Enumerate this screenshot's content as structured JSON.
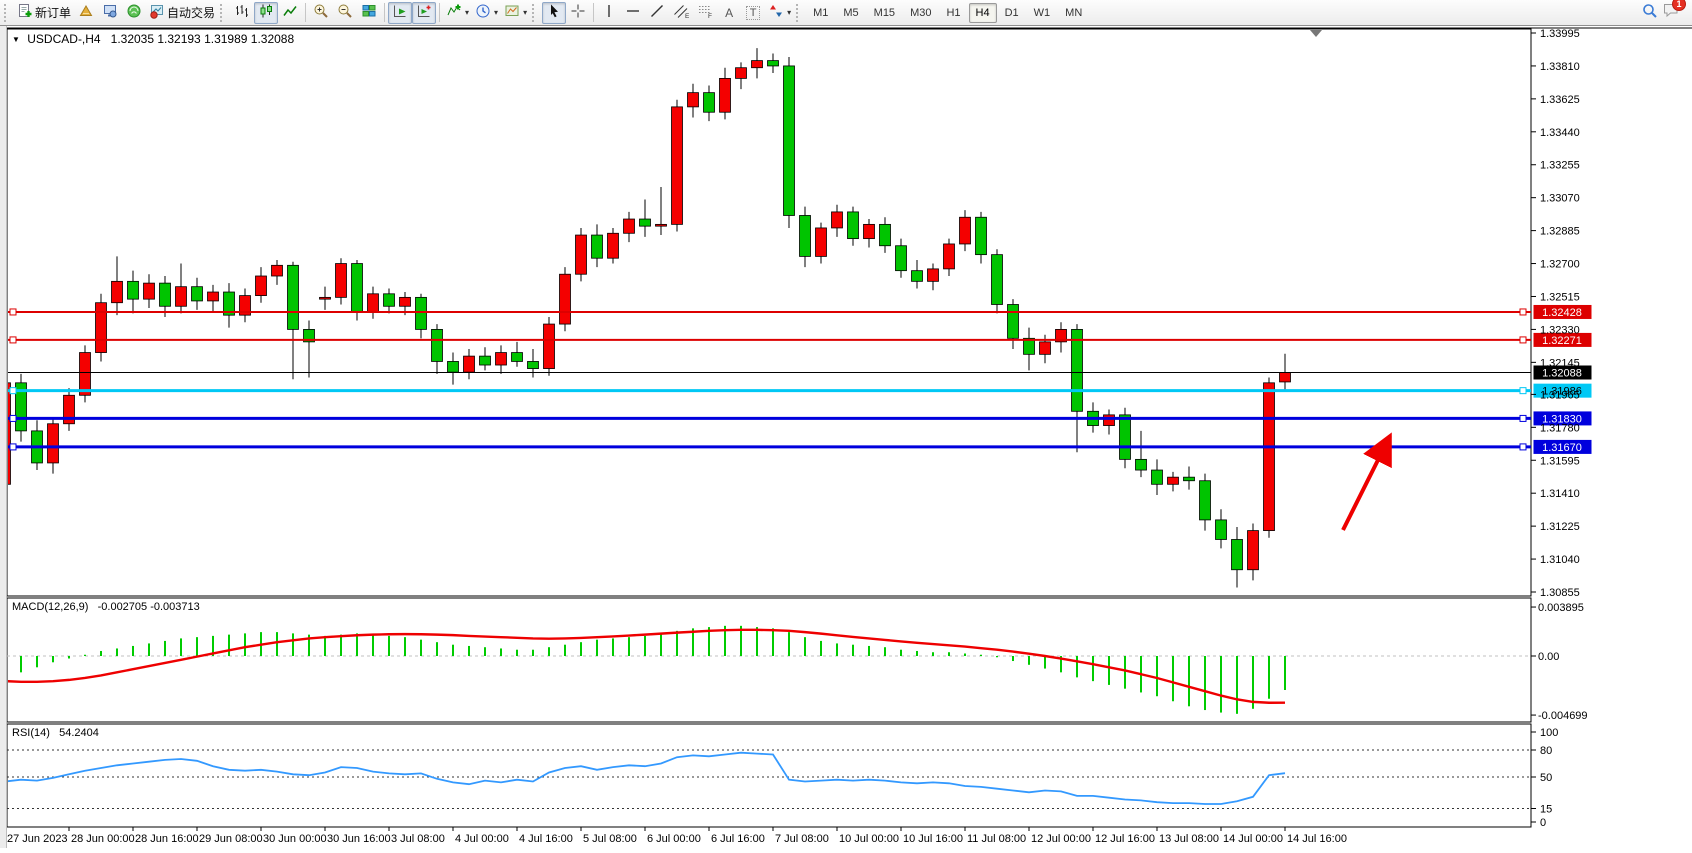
{
  "toolbar": {
    "new_order_label": "新订单",
    "autotrade_label": "自动交易",
    "timeframes": [
      "M1",
      "M5",
      "M15",
      "M30",
      "H1",
      "H4",
      "D1",
      "W1",
      "MN"
    ],
    "active_timeframe": "H4",
    "notification_count": "1"
  },
  "icons": {
    "caret": "▾",
    "dropdown": "▼",
    "text_a": "A",
    "text_label": "T",
    "channel_letter": "E",
    "fibo_letter": "F"
  },
  "chart_data": {
    "type": "candlestick",
    "symbol_title": "USDCAD-,H4",
    "ohlc_display": "1.32035 1.32193 1.31989 1.32088",
    "axis_top": 1.33995,
    "axis_bottom": 1.30855,
    "y_axis_ticks": [
      "1.33995",
      "1.33810",
      "1.33625",
      "1.33440",
      "1.33255",
      "1.33070",
      "1.32885",
      "1.32700",
      "1.32515",
      "1.32330",
      "1.32145",
      "1.31965",
      "1.31780",
      "1.31595",
      "1.31410",
      "1.31225",
      "1.31040",
      "1.30855"
    ],
    "candle_colors": {
      "bull": "#f40000",
      "bear": "#00c400",
      "outline": "#000000"
    },
    "candles": [
      [
        1.3146,
        1.3207,
        1.3142,
        1.3203
      ],
      [
        1.3203,
        1.3208,
        1.317,
        1.3176
      ],
      [
        1.3176,
        1.3182,
        1.3154,
        1.3158
      ],
      [
        1.3158,
        1.3183,
        1.3152,
        1.318
      ],
      [
        1.318,
        1.32,
        1.3176,
        1.3196
      ],
      [
        1.3196,
        1.3224,
        1.3192,
        1.322
      ],
      [
        1.322,
        1.3253,
        1.3215,
        1.3248
      ],
      [
        1.3248,
        1.3274,
        1.3241,
        1.326
      ],
      [
        1.326,
        1.3266,
        1.3242,
        1.325
      ],
      [
        1.325,
        1.3264,
        1.3245,
        1.3259
      ],
      [
        1.3259,
        1.3263,
        1.324,
        1.3246
      ],
      [
        1.3246,
        1.327,
        1.3242,
        1.3257
      ],
      [
        1.3257,
        1.3262,
        1.3244,
        1.3249
      ],
      [
        1.3249,
        1.3258,
        1.3243,
        1.3254
      ],
      [
        1.3254,
        1.3259,
        1.3234,
        1.3241
      ],
      [
        1.3241,
        1.3256,
        1.3237,
        1.3252
      ],
      [
        1.3252,
        1.3268,
        1.3248,
        1.3263
      ],
      [
        1.3263,
        1.3272,
        1.3258,
        1.3269
      ],
      [
        1.3269,
        1.3271,
        1.3205,
        1.3233
      ],
      [
        1.3233,
        1.3238,
        1.3206,
        1.3226
      ],
      [
        1.325,
        1.3257,
        1.3244,
        1.3251
      ],
      [
        1.3251,
        1.3273,
        1.3247,
        1.327
      ],
      [
        1.327,
        1.3272,
        1.3238,
        1.3243
      ],
      [
        1.3243,
        1.3257,
        1.3239,
        1.3253
      ],
      [
        1.3253,
        1.3256,
        1.3242,
        1.3246
      ],
      [
        1.3246,
        1.3254,
        1.3241,
        1.3251
      ],
      [
        1.3251,
        1.3253,
        1.3228,
        1.3233
      ],
      [
        1.3233,
        1.3236,
        1.3208,
        1.3215
      ],
      [
        1.3215,
        1.322,
        1.3202,
        1.3209
      ],
      [
        1.3209,
        1.3222,
        1.3205,
        1.3218
      ],
      [
        1.3218,
        1.3223,
        1.321,
        1.3213
      ],
      [
        1.3213,
        1.3224,
        1.3208,
        1.322
      ],
      [
        1.322,
        1.3226,
        1.3212,
        1.3215
      ],
      [
        1.3215,
        1.3222,
        1.3206,
        1.3211
      ],
      [
        1.3211,
        1.324,
        1.3207,
        1.3236
      ],
      [
        1.3236,
        1.3268,
        1.3232,
        1.3264
      ],
      [
        1.3264,
        1.329,
        1.326,
        1.3286
      ],
      [
        1.3286,
        1.3292,
        1.3268,
        1.3273
      ],
      [
        1.3273,
        1.329,
        1.327,
        1.3287
      ],
      [
        1.3287,
        1.3299,
        1.3282,
        1.3295
      ],
      [
        1.3295,
        1.3306,
        1.3285,
        1.3291
      ],
      [
        1.3291,
        1.3313,
        1.3286,
        1.3292
      ],
      [
        1.3292,
        1.3362,
        1.3288,
        1.3358
      ],
      [
        1.3358,
        1.3371,
        1.3352,
        1.3366
      ],
      [
        1.3366,
        1.337,
        1.335,
        1.3355
      ],
      [
        1.3355,
        1.338,
        1.3351,
        1.3374
      ],
      [
        1.3374,
        1.3383,
        1.3368,
        1.338
      ],
      [
        1.338,
        1.3391,
        1.3374,
        1.3384
      ],
      [
        1.3384,
        1.3388,
        1.3377,
        1.3381
      ],
      [
        1.3381,
        1.3386,
        1.329,
        1.3297
      ],
      [
        1.3297,
        1.3302,
        1.3268,
        1.3274
      ],
      [
        1.3274,
        1.3293,
        1.327,
        1.329
      ],
      [
        1.329,
        1.3303,
        1.3285,
        1.3299
      ],
      [
        1.3299,
        1.3302,
        1.328,
        1.3284
      ],
      [
        1.3284,
        1.3295,
        1.3279,
        1.3292
      ],
      [
        1.3292,
        1.3296,
        1.3276,
        1.328
      ],
      [
        1.328,
        1.3284,
        1.3262,
        1.3266
      ],
      [
        1.3266,
        1.3272,
        1.3256,
        1.326
      ],
      [
        1.326,
        1.327,
        1.3255,
        1.3267
      ],
      [
        1.3267,
        1.3284,
        1.3263,
        1.3281
      ],
      [
        1.3281,
        1.33,
        1.3277,
        1.3296
      ],
      [
        1.3296,
        1.3299,
        1.327,
        1.3275
      ],
      [
        1.3275,
        1.3278,
        1.3242,
        1.3247
      ],
      [
        1.3247,
        1.325,
        1.3222,
        1.3228
      ],
      [
        1.3228,
        1.3234,
        1.321,
        1.3219
      ],
      [
        1.3219,
        1.323,
        1.3214,
        1.3226
      ],
      [
        1.3226,
        1.3237,
        1.322,
        1.3233
      ],
      [
        1.3233,
        1.3236,
        1.3164,
        1.3187
      ],
      [
        1.3187,
        1.3192,
        1.3175,
        1.3179
      ],
      [
        1.3179,
        1.3188,
        1.3174,
        1.3185
      ],
      [
        1.3185,
        1.3189,
        1.3155,
        1.316
      ],
      [
        1.316,
        1.3176,
        1.315,
        1.3154
      ],
      [
        1.3154,
        1.316,
        1.314,
        1.3146
      ],
      [
        1.3146,
        1.3153,
        1.3142,
        1.315
      ],
      [
        1.315,
        1.3156,
        1.3143,
        1.3148
      ],
      [
        1.3148,
        1.3152,
        1.312,
        1.3126
      ],
      [
        1.3126,
        1.3132,
        1.311,
        1.3115
      ],
      [
        1.3115,
        1.3122,
        1.3088,
        1.3098
      ],
      [
        1.3098,
        1.3124,
        1.3092,
        1.312
      ],
      [
        1.312,
        1.3206,
        1.3116,
        1.3203
      ],
      [
        1.32035,
        1.32193,
        1.31989,
        1.32088
      ]
    ],
    "horizontal_lines": [
      {
        "price": 1.32428,
        "label": "1.32428",
        "color": "#dd0000",
        "width": 2,
        "label_text_color": "#ffffff",
        "handles": true
      },
      {
        "price": 1.32271,
        "label": "1.32271",
        "color": "#dd0000",
        "width": 2,
        "label_text_color": "#ffffff",
        "handles": true
      },
      {
        "price": 1.32088,
        "label": "1.32088",
        "color": "#000000",
        "width": 1,
        "label_text_color": "#ffffff",
        "handles": false
      },
      {
        "price": 1.31986,
        "label": "1.31986",
        "color": "#00c8f5",
        "width": 3,
        "label_text_color": "#000000",
        "handles": true
      },
      {
        "price": 1.3183,
        "label": "1.31830",
        "color": "#0000dd",
        "width": 3,
        "label_text_color": "#ffffff",
        "handles": true
      },
      {
        "price": 1.3167,
        "label": "1.31670",
        "color": "#0000dd",
        "width": 3,
        "label_text_color": "#ffffff",
        "handles": true
      }
    ],
    "time_labels": [
      {
        "bar": 0,
        "text": "27 Jun 2023"
      },
      {
        "bar": 4,
        "text": "28 Jun 00:00"
      },
      {
        "bar": 8,
        "text": "28 Jun 16:00"
      },
      {
        "bar": 12,
        "text": "29 Jun 08:00"
      },
      {
        "bar": 16,
        "text": "30 Jun 00:00"
      },
      {
        "bar": 20,
        "text": "30 Jun 16:00"
      },
      {
        "bar": 24,
        "text": "3 Jul 08:00"
      },
      {
        "bar": 28,
        "text": "4 Jul 00:00"
      },
      {
        "bar": 32,
        "text": "4 Jul 16:00"
      },
      {
        "bar": 36,
        "text": "5 Jul 08:00"
      },
      {
        "bar": 40,
        "text": "6 Jul 00:00"
      },
      {
        "bar": 44,
        "text": "6 Jul 16:00"
      },
      {
        "bar": 48,
        "text": "7 Jul 08:00"
      },
      {
        "bar": 52,
        "text": "10 Jul 00:00"
      },
      {
        "bar": 56,
        "text": "10 Jul 16:00"
      },
      {
        "bar": 60,
        "text": "11 Jul 08:00"
      },
      {
        "bar": 64,
        "text": "12 Jul 00:00"
      },
      {
        "bar": 68,
        "text": "12 Jul 16:00"
      },
      {
        "bar": 72,
        "text": "13 Jul 08:00"
      },
      {
        "bar": 76,
        "text": "14 Jul 00:00"
      },
      {
        "bar": 80,
        "text": "14 Jul 16:00"
      }
    ],
    "indicators": {
      "macd": {
        "name": "MACD(12,26,9)",
        "values_text": "-0.002705 -0.003713",
        "scale_labels": [
          "0.003895",
          "0.00",
          "-0.004699"
        ],
        "scale_values": [
          0.003895,
          0.0,
          -0.004699
        ],
        "histogram_color": "#00cc00",
        "signal_color": "#ee0000",
        "histogram": [
          -0.0016,
          -0.0013,
          -0.0009,
          -0.0005,
          -0.0002,
          0.0001,
          0.0004,
          0.0006,
          0.0008,
          0.001,
          0.0012,
          0.0014,
          0.0015,
          0.0016,
          0.0017,
          0.0018,
          0.0019,
          0.0019,
          0.0018,
          0.0017,
          0.0016,
          0.0017,
          0.0018,
          0.0017,
          0.0016,
          0.0015,
          0.0013,
          0.0011,
          0.0009,
          0.0008,
          0.0007,
          0.0006,
          0.0005,
          0.0005,
          0.0007,
          0.0009,
          0.0011,
          0.0013,
          0.0014,
          0.0015,
          0.0016,
          0.0018,
          0.002,
          0.0022,
          0.0023,
          0.0024,
          0.0024,
          0.0023,
          0.0022,
          0.0019,
          0.0015,
          0.0012,
          0.001,
          0.0009,
          0.0008,
          0.0007,
          0.0005,
          0.0004,
          0.0003,
          0.0003,
          0.0002,
          0.0001,
          -0.0001,
          -0.0004,
          -0.0007,
          -0.001,
          -0.0013,
          -0.0017,
          -0.002,
          -0.0023,
          -0.0026,
          -0.0029,
          -0.0032,
          -0.0036,
          -0.004,
          -0.0043,
          -0.0045,
          -0.0046,
          -0.0042,
          -0.0034,
          -0.002705
        ],
        "signal": [
          -0.002,
          -0.00205,
          -0.00205,
          -0.002,
          -0.0019,
          -0.00175,
          -0.00155,
          -0.0013,
          -0.00105,
          -0.0008,
          -0.00055,
          -0.0003,
          -5e-05,
          0.0002,
          0.00045,
          0.0007,
          0.0009,
          0.0011,
          0.00125,
          0.0014,
          0.0015,
          0.00158,
          0.00165,
          0.0017,
          0.00173,
          0.00174,
          0.00173,
          0.0017,
          0.00166,
          0.0016,
          0.00155,
          0.0015,
          0.00145,
          0.0014,
          0.00138,
          0.0014,
          0.00144,
          0.0015,
          0.00156,
          0.00163,
          0.0017,
          0.00178,
          0.00186,
          0.00193,
          0.002,
          0.00205,
          0.00208,
          0.00208,
          0.00205,
          0.002,
          0.0019,
          0.00178,
          0.00165,
          0.00152,
          0.0014,
          0.00128,
          0.00116,
          0.00105,
          0.00095,
          0.00085,
          0.00075,
          0.00062,
          0.0005,
          0.00035,
          0.00018,
          0.0,
          -0.0002,
          -0.00042,
          -0.00065,
          -0.0009,
          -0.00115,
          -0.00145,
          -0.00175,
          -0.0021,
          -0.00245,
          -0.0028,
          -0.00315,
          -0.00345,
          -0.00365,
          -0.00372,
          -0.003713
        ]
      },
      "rsi": {
        "name": "RSI(14)",
        "value_text": "54.2404",
        "line_color": "#3399ff",
        "levels": [
          80,
          50,
          15
        ],
        "axis_labels": [
          "100",
          "80",
          "50",
          "15",
          "0"
        ],
        "axis_label_values": [
          100,
          80,
          50,
          15,
          0
        ],
        "values": [
          45,
          47,
          46,
          49,
          53,
          57,
          60,
          63,
          65,
          67,
          69,
          70,
          68,
          62,
          58,
          57,
          58,
          56,
          53,
          52,
          55,
          61,
          60,
          56,
          54,
          53,
          54,
          48,
          44,
          42,
          46,
          44,
          47,
          45,
          55,
          60,
          62,
          58,
          61,
          63,
          62,
          65,
          72,
          74,
          73,
          75,
          77,
          76,
          75,
          47,
          45,
          46,
          47,
          46,
          47,
          46,
          44,
          43,
          44,
          43,
          40,
          39,
          37,
          35,
          33,
          35,
          34,
          29,
          29,
          27,
          25,
          24,
          22,
          21,
          21,
          20,
          20,
          23,
          28,
          52,
          54.24
        ]
      }
    },
    "arrow_annotation": {
      "color": "#ee0000",
      "direction": "up-right"
    }
  }
}
